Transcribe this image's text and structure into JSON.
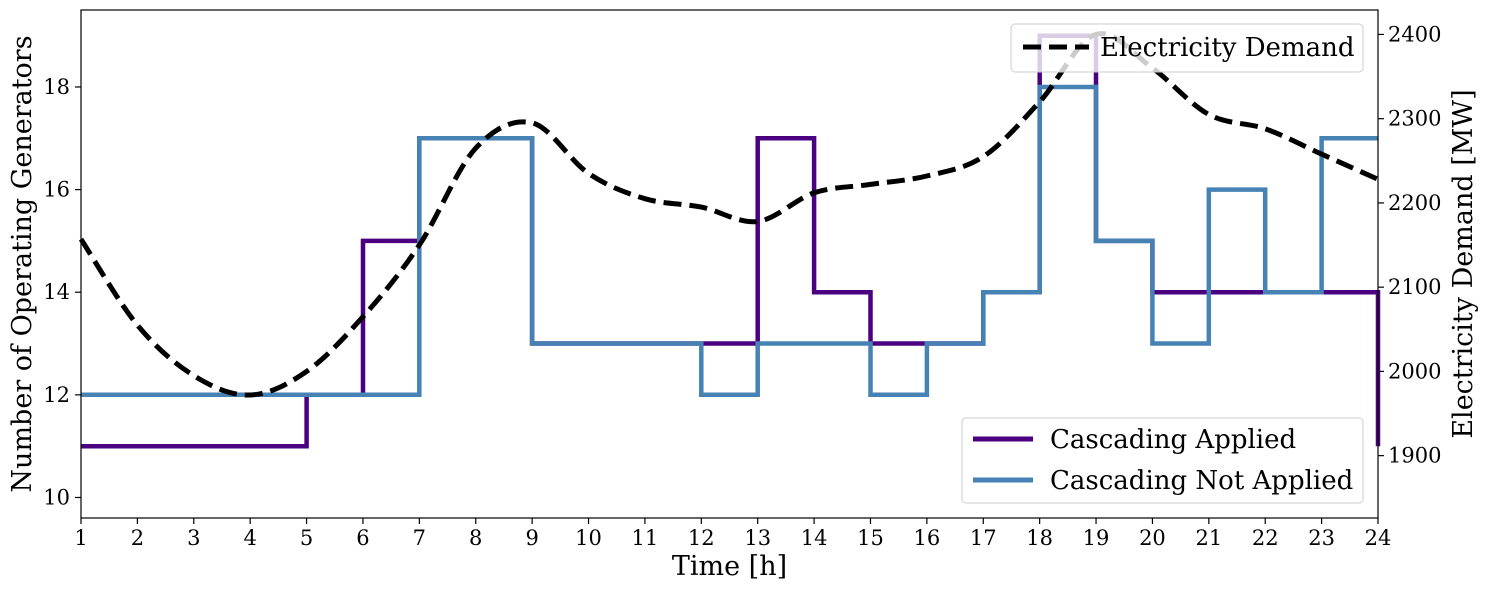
{
  "chart_data": {
    "type": "line",
    "xlabel": "Time [h]",
    "ylabel": "Number of Operating Generators",
    "y2label": "Electricity Demand [MW]",
    "x": [
      1,
      2,
      3,
      4,
      5,
      6,
      7,
      8,
      9,
      10,
      11,
      12,
      13,
      14,
      15,
      16,
      17,
      18,
      19,
      20,
      21,
      22,
      23,
      24
    ],
    "x_ticks": [
      "1",
      "2",
      "3",
      "4",
      "5",
      "6",
      "7",
      "8",
      "9",
      "10",
      "11",
      "12",
      "13",
      "14",
      "15",
      "16",
      "17",
      "18",
      "19",
      "20",
      "21",
      "22",
      "23",
      "24"
    ],
    "xlim": [
      1,
      24
    ],
    "ylim": [
      9.6,
      19.5
    ],
    "y_ticks": [
      "10",
      "12",
      "14",
      "16",
      "18"
    ],
    "y2lim": [
      1826,
      2429
    ],
    "y2_ticks": [
      "1900",
      "2000",
      "2100",
      "2200",
      "2300",
      "2400"
    ],
    "grid": false,
    "step_series": [
      {
        "name": "Cascading Applied",
        "color": "#4b0082",
        "style": "solid-step",
        "values": [
          11,
          11,
          11,
          11,
          12,
          15,
          17,
          17,
          13,
          13,
          13,
          13,
          17,
          14,
          13,
          13,
          14,
          19,
          15,
          14,
          14,
          14,
          14,
          11
        ]
      },
      {
        "name": "Cascading Not Applied",
        "color": "#4682b4",
        "style": "solid-step",
        "values": [
          12,
          12,
          12,
          12,
          12,
          12,
          17,
          17,
          13,
          13,
          13,
          12,
          13,
          13,
          12,
          13,
          14,
          18,
          15,
          13,
          16,
          14,
          17,
          17
        ]
      }
    ],
    "demand_series": {
      "name": "Electricity Demand",
      "color": "#000000",
      "style": "dashed",
      "axis": "right",
      "values": [
        2157,
        2055,
        1995,
        1972,
        2000,
        2065,
        2150,
        2265,
        2295,
        2235,
        2205,
        2195,
        2178,
        2212,
        2222,
        2232,
        2255,
        2320,
        2400,
        2360,
        2305,
        2288,
        2258,
        2228
      ]
    },
    "legends": [
      {
        "position": "top-right",
        "entries": [
          "Electricity Demand"
        ]
      },
      {
        "position": "bottom-right",
        "entries": [
          "Cascading Applied",
          "Cascading Not Applied"
        ]
      }
    ]
  }
}
